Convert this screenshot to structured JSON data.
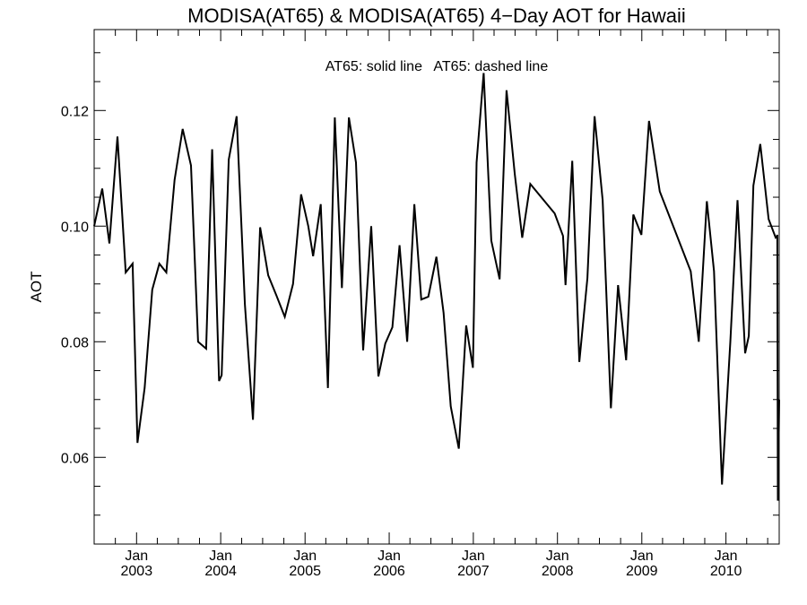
{
  "chart_data": {
    "type": "line",
    "title": "MODISA(AT65) & MODISA(AT65) 4−Day AOT for Hawaii",
    "annotation": "AT65: solid line   AT65: dashed line",
    "ylabel": "AOT",
    "xlabel": "",
    "ylim": [
      0.045,
      0.134
    ],
    "xlim": [
      "2002-07-01",
      "2010-08-20"
    ],
    "yticks": [
      "0.06",
      "0.08",
      "0.10",
      "0.12"
    ],
    "ytick_values": [
      0.06,
      0.08,
      0.1,
      0.12
    ],
    "xticks": [
      {
        "month": "Jan",
        "year": "2003",
        "date": "2003-01-01"
      },
      {
        "month": "Jan",
        "year": "2004",
        "date": "2004-01-01"
      },
      {
        "month": "Jan",
        "year": "2005",
        "date": "2005-01-01"
      },
      {
        "month": "Jan",
        "year": "2006",
        "date": "2006-01-01"
      },
      {
        "month": "Jan",
        "year": "2007",
        "date": "2007-01-01"
      },
      {
        "month": "Jan",
        "year": "2008",
        "date": "2008-01-01"
      },
      {
        "month": "Jan",
        "year": "2009",
        "date": "2009-01-01"
      },
      {
        "month": "Jan",
        "year": "2010",
        "date": "2010-01-01"
      }
    ],
    "grid": false,
    "series": [
      {
        "style": "solid",
        "color": "#000000",
        "points": [
          [
            "2002-07-01",
            0.1
          ],
          [
            "2002-08-05",
            0.1065
          ],
          [
            "2002-09-05",
            0.097
          ],
          [
            "2002-10-10",
            0.1155
          ],
          [
            "2002-11-15",
            0.092
          ],
          [
            "2002-12-15",
            0.0935
          ],
          [
            "2003-01-05",
            0.0625
          ],
          [
            "2003-02-05",
            0.072
          ],
          [
            "2003-03-10",
            0.089
          ],
          [
            "2003-04-10",
            0.0935
          ],
          [
            "2003-05-10",
            0.092
          ],
          [
            "2003-06-15",
            0.108
          ],
          [
            "2003-07-20",
            0.1168
          ],
          [
            "2003-08-25",
            0.1105
          ],
          [
            "2003-09-25",
            0.08
          ],
          [
            "2003-10-30",
            0.0788
          ],
          [
            "2003-11-25",
            0.1133
          ],
          [
            "2003-12-25",
            0.0732
          ],
          [
            "2004-01-05",
            0.0742
          ],
          [
            "2004-02-05",
            0.1115
          ],
          [
            "2004-03-10",
            0.119
          ],
          [
            "2004-04-15",
            0.0865
          ],
          [
            "2004-05-20",
            0.0665
          ],
          [
            "2004-06-20",
            0.0998
          ],
          [
            "2004-07-25",
            0.0915
          ],
          [
            "2004-08-30",
            0.088
          ],
          [
            "2004-10-05",
            0.0843
          ],
          [
            "2004-11-10",
            0.09
          ],
          [
            "2004-12-15",
            0.1055
          ],
          [
            "2005-01-15",
            0.1
          ],
          [
            "2005-02-05",
            0.0948
          ],
          [
            "2005-03-10",
            0.1038
          ],
          [
            "2005-04-10",
            0.072
          ],
          [
            "2005-05-10",
            0.1188
          ],
          [
            "2005-06-10",
            0.0893
          ],
          [
            "2005-07-10",
            0.1188
          ],
          [
            "2005-08-10",
            0.111
          ],
          [
            "2005-09-10",
            0.0785
          ],
          [
            "2005-10-15",
            0.1
          ],
          [
            "2005-11-15",
            0.074
          ],
          [
            "2005-12-15",
            0.0797
          ],
          [
            "2006-01-15",
            0.0825
          ],
          [
            "2006-02-15",
            0.0967
          ],
          [
            "2006-03-20",
            0.08
          ],
          [
            "2006-04-20",
            0.1038
          ],
          [
            "2006-05-20",
            0.0873
          ],
          [
            "2006-06-20",
            0.0878
          ],
          [
            "2006-07-25",
            0.0947
          ],
          [
            "2006-08-25",
            0.085
          ],
          [
            "2006-09-25",
            0.0688
          ],
          [
            "2006-10-30",
            0.0615
          ],
          [
            "2006-12-01",
            0.0828
          ],
          [
            "2006-12-30",
            0.0755
          ],
          [
            "2007-01-15",
            0.111
          ],
          [
            "2007-02-15",
            0.1265
          ],
          [
            "2007-03-20",
            0.0975
          ],
          [
            "2007-04-25",
            0.0908
          ],
          [
            "2007-05-25",
            0.1235
          ],
          [
            "2007-06-30",
            0.109
          ],
          [
            "2007-08-01",
            0.098
          ],
          [
            "2007-09-05",
            0.1073
          ],
          [
            "2007-12-20",
            0.1022
          ],
          [
            "2008-01-25",
            0.0983
          ],
          [
            "2008-02-05",
            0.0898
          ],
          [
            "2008-03-05",
            0.1113
          ],
          [
            "2008-04-05",
            0.0765
          ],
          [
            "2008-05-10",
            0.091
          ],
          [
            "2008-06-10",
            0.119
          ],
          [
            "2008-07-15",
            0.1045
          ],
          [
            "2008-08-20",
            0.0685
          ],
          [
            "2008-09-20",
            0.0898
          ],
          [
            "2008-10-25",
            0.0768
          ],
          [
            "2008-11-25",
            0.102
          ],
          [
            "2008-12-30",
            0.0985
          ],
          [
            "2009-02-01",
            0.1182
          ],
          [
            "2009-03-20",
            0.106
          ],
          [
            "2009-08-01",
            0.0922
          ],
          [
            "2009-09-05",
            0.08
          ],
          [
            "2009-10-10",
            0.1043
          ],
          [
            "2009-11-10",
            0.0922
          ],
          [
            "2009-12-15",
            0.0553
          ],
          [
            "2010-01-20",
            0.08
          ],
          [
            "2010-02-20",
            0.1045
          ],
          [
            "2010-03-25",
            0.078
          ],
          [
            "2010-04-10",
            0.081
          ],
          [
            "2010-04-30",
            0.107
          ],
          [
            "2010-05-30",
            0.1142
          ],
          [
            "2010-07-05",
            0.1012
          ],
          [
            "2010-08-05",
            0.098
          ],
          [
            "2010-08-09",
            0.0981
          ],
          [
            "2010-08-12",
            0.0985
          ],
          [
            "2010-08-14",
            0.0525
          ],
          [
            "2010-08-20",
            0.07
          ]
        ]
      }
    ]
  }
}
